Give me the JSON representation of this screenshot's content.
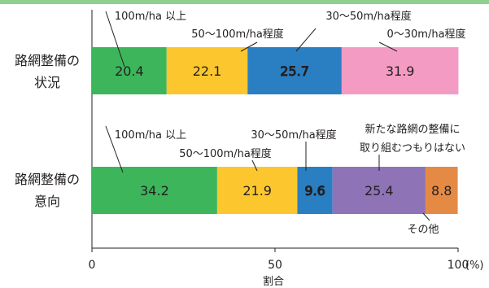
{
  "chart_data": {
    "type": "bar",
    "orientation": "horizontal",
    "stacked": true,
    "xlim": [
      0,
      100
    ],
    "ticks": [
      {
        "value": 0,
        "label": "0"
      },
      {
        "value": 50,
        "label": "50"
      },
      {
        "value": 100,
        "label": "100"
      }
    ],
    "unit": "(%)",
    "xlabel": "割合",
    "grid": false,
    "colors": {
      "green": "#3cb55b",
      "yellow": "#fcc72e",
      "blue": "#2a7fc3",
      "pink": "#f49bc4",
      "purple": "#8e73b7",
      "orange": "#e58a45"
    },
    "rows": [
      {
        "label_line1": "路網整備の",
        "label_line2": "状況",
        "segments": [
          {
            "category": "100m/ha 以上",
            "value": 20.4,
            "color": "#3cb55b",
            "label_text": "20.4"
          },
          {
            "category": "50〜100m/ha程度",
            "value": 22.1,
            "color": "#fcc72e",
            "label_text": "22.1"
          },
          {
            "category": "30〜50m/ha程度",
            "value": 25.7,
            "color": "#2a7fc3",
            "label_text": "25.7"
          },
          {
            "category": "0〜30m/ha程度",
            "value": 31.9,
            "color": "#f49bc4",
            "label_text": "31.9"
          }
        ]
      },
      {
        "label_line1": "路網整備の",
        "label_line2": "意向",
        "segments": [
          {
            "category": "100m/ha 以上",
            "value": 34.2,
            "color": "#3cb55b",
            "label_text": "34.2"
          },
          {
            "category": "50〜100m/ha程度",
            "value": 21.9,
            "color": "#fcc72e",
            "label_text": "21.9"
          },
          {
            "category": "30〜50m/ha程度",
            "value": 9.6,
            "color": "#2a7fc3",
            "label_text": "9.6"
          },
          {
            "category": "新たな路網の整備に取り組むつもりはない",
            "value": 25.4,
            "color": "#8e73b7",
            "label_text": "25.4"
          },
          {
            "category": "その他",
            "value": 8.8,
            "color": "#e58a45",
            "label_text": "8.8"
          }
        ]
      }
    ],
    "annotations": {
      "status": [
        {
          "text": "100m/ha 以上"
        },
        {
          "text": "50〜100m/ha程度"
        },
        {
          "text": "30〜50m/ha程度"
        },
        {
          "text": "0〜30m/ha程度"
        }
      ],
      "intent": [
        {
          "text": "100m/ha 以上"
        },
        {
          "text": "30〜50m/ha程度"
        },
        {
          "text": "50〜100m/ha程度"
        },
        {
          "text": "新たな路網の整備に"
        },
        {
          "text": "取り組むつもりはない"
        },
        {
          "text": "その他"
        }
      ]
    }
  }
}
